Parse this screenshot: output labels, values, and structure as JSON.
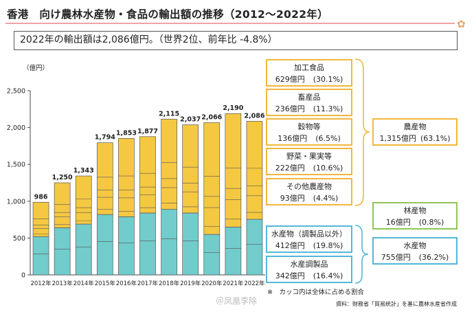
{
  "title": "香港　向け農林水産物・食品の輸出額の推移（2012～2022年）",
  "summary": "2022年の輸出額は2,086億円。（世界2位、前年比 -4.8%）",
  "colors": {
    "agri": "#f5c842",
    "fishery": "#72cccc",
    "orange_border": "#f2b73a",
    "blue_border": "#52b7d8",
    "green_border": "#8fc657",
    "title_line": "#f0a3a3"
  },
  "chart_data": {
    "type": "bar",
    "stacked": true,
    "unit_label": "（億円）",
    "ylim": [
      0,
      2500
    ],
    "yticks": [
      "0",
      "500",
      "1,000",
      "1,500",
      "2,000",
      "2,500"
    ],
    "categories": [
      "2012年",
      "2013年",
      "2014年",
      "2015年",
      "2016年",
      "2017年",
      "2018年",
      "2019年",
      "2020年",
      "2021年",
      "2022年"
    ],
    "totals": [
      986,
      1250,
      1343,
      1794,
      1853,
      1877,
      2115,
      2037,
      2066,
      2190,
      2086
    ],
    "total_labels": [
      "986",
      "1,250",
      "1,343",
      "1,794",
      "1,853",
      "1,877",
      "2,115",
      "2,037",
      "2,066",
      "2,190",
      "2,086"
    ],
    "series": [
      {
        "color": "#72cccc",
        "values": [
          520,
          640,
          690,
          820,
          790,
          840,
          890,
          840,
          550,
          650,
          755
        ]
      },
      {
        "color": "#f5c842",
        "values": [
          466,
          610,
          653,
          974,
          1063,
          1037,
          1225,
          1197,
          1516,
          1540,
          1331
        ]
      }
    ]
  },
  "categories_boxes": {
    "processed": {
      "name": "加工食品",
      "value": "629億円",
      "share": "(30.1%)"
    },
    "livestock": {
      "name": "畜産品",
      "value": "236億円",
      "share": "(11.3%)"
    },
    "grain": {
      "name": "穀物等",
      "value": "136億円",
      "share": "(6.5%)"
    },
    "veg": {
      "name": "野菜・果実等",
      "value": "222億円",
      "share": "(10.6%)"
    },
    "other_agri": {
      "name": "その他農産物",
      "value": "93億円",
      "share": "(4.4%)"
    },
    "fish": {
      "name": "水産物（調製品以外）",
      "value": "412億円",
      "share": "(19.8%)"
    },
    "fish_prep": {
      "name": "水産調製品",
      "value": "342億円",
      "share": "(16.4%)"
    },
    "agri_total": {
      "name": "農産物",
      "value": "1,315億円",
      "share": "(63.1%)"
    },
    "forest_total": {
      "name": "林産物",
      "value": "16億円",
      "share": "(0.8%)"
    },
    "fish_total": {
      "name": "水産物",
      "value": "755億円",
      "share": "(36.2%)"
    }
  },
  "footnote": "※　カッコ内は全体に占める割合",
  "source": "資料：財務省「貿易統計」を基に農林水産省作成",
  "watermark": "＠凤凰李除"
}
